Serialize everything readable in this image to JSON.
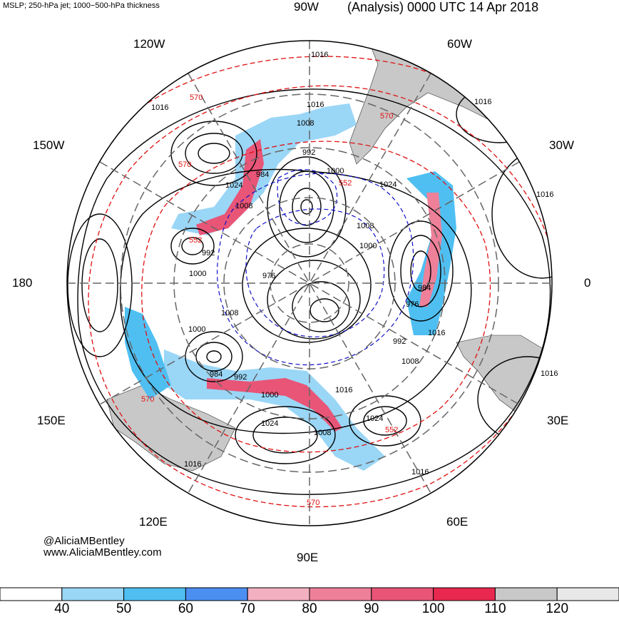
{
  "header": {
    "left_title": "MSLP; 250-hPa jet; 1000−500-hPa thickness",
    "right_title": "(Analysis) 0000 UTC 14 Apr 2018"
  },
  "longitude_labels": {
    "w90": "90W",
    "w60": "60W",
    "w30": "30W",
    "zero": "0",
    "e30": "30E",
    "e60": "60E",
    "e90": "90E",
    "e120": "120E",
    "e150": "150E",
    "dateline": "180",
    "w150": "150W",
    "w120": "120W"
  },
  "pressure_labels": [
    "1016",
    "1016",
    "1016",
    "1016",
    "1016",
    "1016",
    "1016",
    "1016",
    "1016",
    "1016",
    "1008",
    "1008",
    "1008",
    "1008",
    "1008",
    "1008",
    "1024",
    "1024",
    "1024",
    "1024",
    "1000",
    "1000",
    "1000",
    "1000",
    "1000",
    "992",
    "992",
    "992",
    "992",
    "984",
    "984",
    "984",
    "976",
    "976"
  ],
  "thickness_labels": [
    "570",
    "570",
    "570",
    "570",
    "570",
    "552",
    "552",
    "552"
  ],
  "credits": {
    "handle": "@AliciaMBentley",
    "website": "www.AliciaMBentley.com"
  },
  "colorbar": {
    "ticks": [
      "40",
      "50",
      "60",
      "70",
      "80",
      "90",
      "100",
      "110",
      "120"
    ],
    "colors": [
      "#ffffff",
      "#9ad6f6",
      "#4fbff2",
      "#4b8ff2",
      "#f2b0c0",
      "#ee8099",
      "#e85577",
      "#e8284f",
      "#c8c8c8",
      "#e8e8e8"
    ]
  },
  "style": {
    "mslp_color": "#000000",
    "thickness_color": "#e01010",
    "low_thickness_color": "#1010c8",
    "land_color": "#c8c8c8",
    "grid_color": "#666666"
  }
}
